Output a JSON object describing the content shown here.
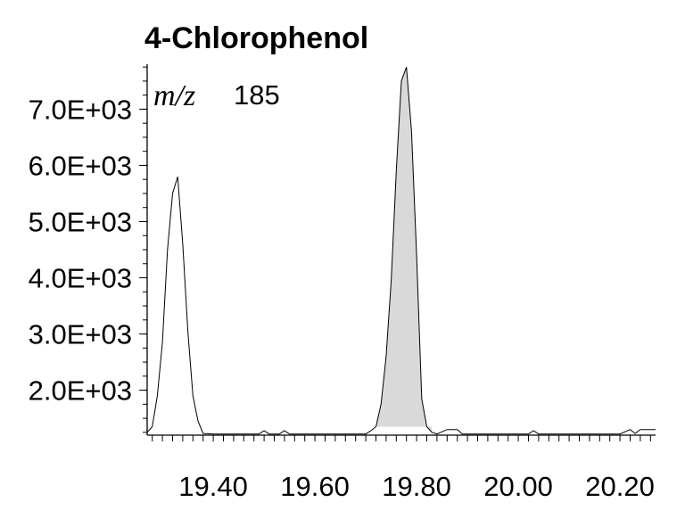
{
  "chart_data": {
    "type": "line",
    "title": "4-Chlorophenol",
    "annotation": {
      "italic": "m/z",
      "value": "185"
    },
    "xlabel": "",
    "ylabel": "",
    "xlim": [
      19.27,
      20.27
    ],
    "ylim": [
      1200,
      7800
    ],
    "grid": false,
    "x_ticks": [
      19.4,
      19.6,
      19.8,
      20.0,
      20.2
    ],
    "x_tick_labels": [
      "19.40",
      "19.60",
      "19.80",
      "20.00",
      "20.20"
    ],
    "y_ticks": [
      2000,
      3000,
      4000,
      5000,
      6000,
      7000
    ],
    "y_tick_labels": [
      "2.0E+03",
      "3.0E+03",
      "4.0E+03",
      "5.0E+03",
      "6.0E+03",
      "7.0E+03"
    ],
    "series": [
      {
        "x": [
          19.27,
          19.28,
          19.29,
          19.3,
          19.31,
          19.32,
          19.33,
          19.34,
          19.35,
          19.36,
          19.37,
          19.38,
          19.4,
          19.45,
          19.49,
          19.5,
          19.51,
          19.53,
          19.54,
          19.55,
          19.6,
          19.65,
          19.7,
          19.71,
          19.72,
          19.73,
          19.74,
          19.75,
          19.76,
          19.77,
          19.78,
          19.79,
          19.8,
          19.81,
          19.82,
          19.83,
          19.84,
          19.86,
          19.87,
          19.88,
          19.89,
          19.9,
          19.95,
          20.0,
          20.02,
          20.03,
          20.04,
          20.1,
          20.15,
          20.2,
          20.22,
          20.23,
          20.24,
          20.25,
          20.27
        ],
        "values": [
          1250,
          1350,
          1900,
          2850,
          4500,
          5500,
          5800,
          4600,
          3050,
          1900,
          1450,
          1230,
          1220,
          1220,
          1220,
          1280,
          1220,
          1220,
          1280,
          1220,
          1220,
          1220,
          1220,
          1280,
          1350,
          1750,
          2600,
          3950,
          5900,
          7500,
          7750,
          6600,
          4400,
          1850,
          1350,
          1250,
          1220,
          1300,
          1300,
          1300,
          1220,
          1220,
          1220,
          1220,
          1220,
          1280,
          1220,
          1220,
          1220,
          1220,
          1300,
          1230,
          1300,
          1300,
          1300
        ],
        "shaded_range": [
          19.72,
          19.83
        ]
      }
    ]
  }
}
